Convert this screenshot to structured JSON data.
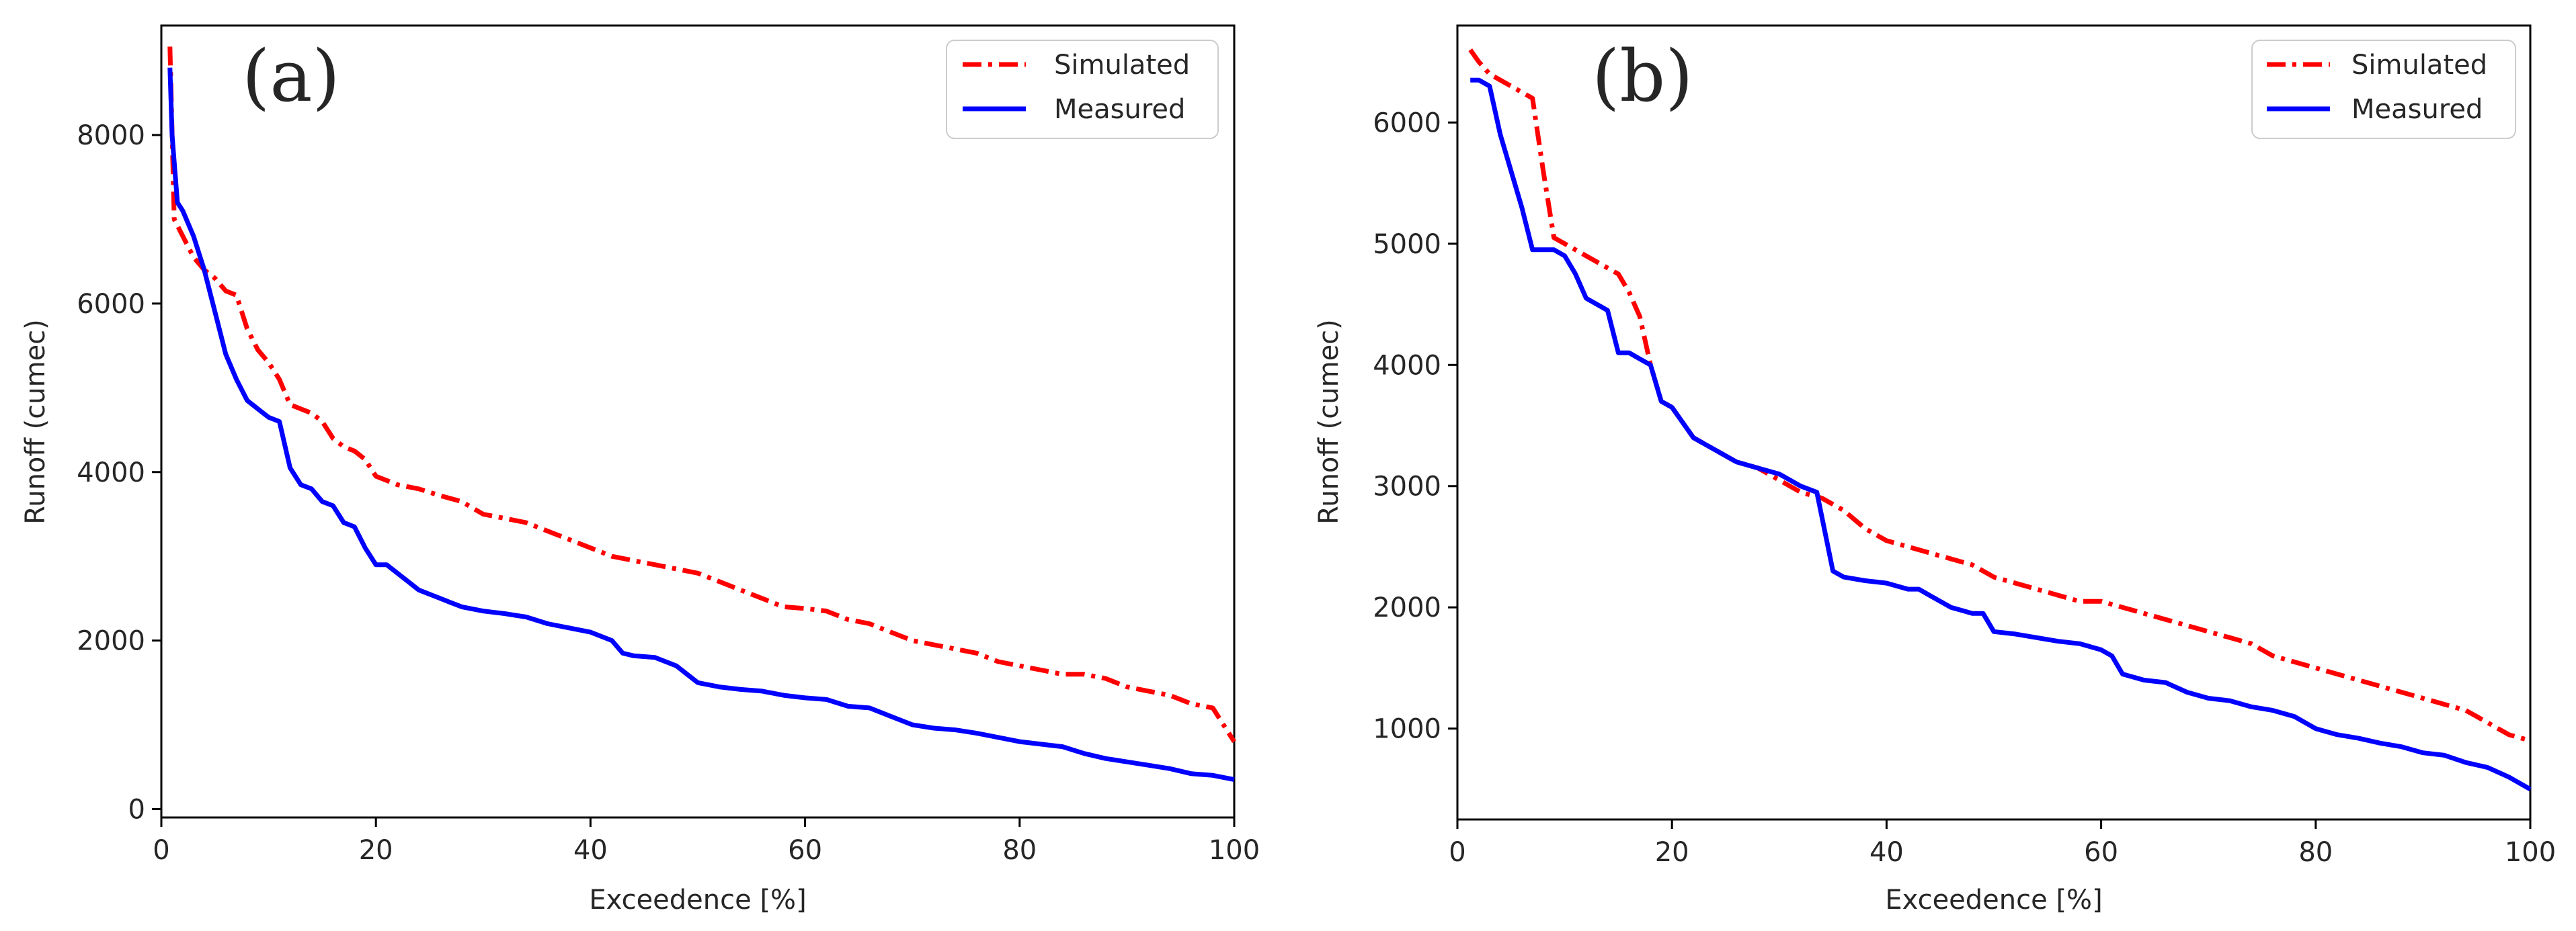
{
  "chart_data": [
    {
      "type": "line",
      "panel_label": "(a)",
      "xlabel": "Exceedence [%]",
      "ylabel": "Runoff (cumec)",
      "xlim": [
        0,
        100
      ],
      "ylim": [
        -100,
        9300
      ],
      "xticks": [
        0,
        20,
        40,
        60,
        80,
        100
      ],
      "yticks": [
        0,
        2000,
        4000,
        6000,
        8000
      ],
      "xtick_labels": [
        "0",
        "20",
        "40",
        "60",
        "80",
        "100"
      ],
      "ytick_labels": [
        "0",
        "2000",
        "4000",
        "6000",
        "8000"
      ],
      "legend_position": "top-right",
      "series": [
        {
          "name": "Simulated",
          "color": "#ff0000",
          "style": "dash-dot",
          "x": [
            0.8,
            1.2,
            2,
            3,
            4,
            5,
            6,
            7,
            8,
            9,
            10,
            11,
            12,
            13,
            14,
            15,
            16,
            17,
            18,
            19,
            20,
            22,
            24,
            26,
            28,
            30,
            32,
            34,
            36,
            38,
            40,
            42,
            44,
            46,
            48,
            50,
            52,
            54,
            56,
            58,
            60,
            62,
            64,
            66,
            68,
            70,
            72,
            74,
            76,
            78,
            80,
            82,
            84,
            86,
            88,
            90,
            92,
            94,
            96,
            98,
            99,
            100
          ],
          "y": [
            9050,
            7000,
            6800,
            6550,
            6400,
            6300,
            6150,
            6100,
            5700,
            5450,
            5300,
            5100,
            4800,
            4750,
            4700,
            4600,
            4400,
            4300,
            4250,
            4150,
            3950,
            3850,
            3800,
            3720,
            3650,
            3500,
            3450,
            3400,
            3300,
            3200,
            3100,
            3000,
            2950,
            2900,
            2850,
            2800,
            2700,
            2600,
            2500,
            2400,
            2380,
            2350,
            2250,
            2200,
            2100,
            2000,
            1950,
            1900,
            1850,
            1750,
            1700,
            1650,
            1600,
            1600,
            1550,
            1450,
            1400,
            1350,
            1250,
            1200,
            1000,
            800
          ]
        },
        {
          "name": "Measured",
          "color": "#0000ff",
          "style": "solid",
          "x": [
            0.8,
            1,
            1.5,
            2,
            3,
            4,
            5,
            6,
            7,
            8,
            9,
            10,
            11,
            12,
            13,
            14,
            15,
            16,
            17,
            18,
            19,
            20,
            21,
            22,
            23,
            24,
            25,
            26,
            27,
            28,
            30,
            32,
            34,
            36,
            38,
            40,
            42,
            43,
            44,
            46,
            48,
            50,
            52,
            54,
            56,
            58,
            60,
            62,
            64,
            66,
            68,
            70,
            72,
            74,
            76,
            78,
            80,
            82,
            84,
            86,
            88,
            90,
            92,
            94,
            96,
            98,
            100
          ],
          "y": [
            8800,
            8000,
            7200,
            7100,
            6800,
            6400,
            5900,
            5400,
            5100,
            4850,
            4750,
            4650,
            4600,
            4050,
            3850,
            3800,
            3650,
            3600,
            3400,
            3350,
            3100,
            2900,
            2900,
            2800,
            2700,
            2600,
            2550,
            2500,
            2450,
            2400,
            2350,
            2320,
            2280,
            2200,
            2150,
            2100,
            2000,
            1850,
            1820,
            1800,
            1700,
            1500,
            1450,
            1420,
            1400,
            1350,
            1320,
            1300,
            1220,
            1200,
            1100,
            1000,
            960,
            940,
            900,
            850,
            800,
            770,
            740,
            660,
            600,
            560,
            520,
            480,
            420,
            400,
            350
          ]
        }
      ]
    },
    {
      "type": "line",
      "panel_label": "(b)",
      "xlabel": "Exceedence [%]",
      "ylabel": "Runoff (cumec)",
      "xlim": [
        0,
        100
      ],
      "ylim": [
        250,
        6800
      ],
      "xticks": [
        0,
        20,
        40,
        60,
        80,
        100
      ],
      "yticks": [
        1000,
        2000,
        3000,
        4000,
        5000,
        6000
      ],
      "xtick_labels": [
        "0",
        "20",
        "40",
        "60",
        "80",
        "100"
      ],
      "ytick_labels": [
        "1000",
        "2000",
        "3000",
        "4000",
        "5000",
        "6000"
      ],
      "legend_position": "top-right",
      "series": [
        {
          "name": "Simulated",
          "color": "#ff0000",
          "style": "dash-dot",
          "x": [
            1.2,
            2,
            3,
            4,
            5,
            6,
            7,
            8,
            9,
            10,
            11,
            12,
            13,
            14,
            15,
            16,
            17,
            18,
            19,
            20,
            22,
            24,
            26,
            28,
            30,
            32,
            34,
            36,
            38,
            40,
            42,
            44,
            46,
            48,
            50,
            52,
            54,
            56,
            58,
            60,
            62,
            64,
            66,
            68,
            70,
            72,
            74,
            76,
            78,
            80,
            82,
            84,
            86,
            88,
            90,
            92,
            94,
            96,
            98,
            100
          ],
          "y": [
            6600,
            6500,
            6400,
            6350,
            6300,
            6250,
            6200,
            5600,
            5050,
            5000,
            4950,
            4900,
            4850,
            4800,
            4750,
            4600,
            4400,
            4000,
            3700,
            3650,
            3400,
            3300,
            3200,
            3150,
            3050,
            2950,
            2900,
            2800,
            2650,
            2550,
            2500,
            2450,
            2400,
            2350,
            2250,
            2200,
            2150,
            2100,
            2050,
            2050,
            2000,
            1950,
            1900,
            1850,
            1800,
            1750,
            1700,
            1600,
            1550,
            1500,
            1450,
            1400,
            1350,
            1300,
            1250,
            1200,
            1150,
            1050,
            950,
            900
          ]
        },
        {
          "name": "Measured",
          "color": "#0000ff",
          "style": "solid",
          "x": [
            1.2,
            2,
            3,
            4,
            5,
            6,
            7,
            8,
            9,
            10,
            11,
            12,
            13,
            14,
            15,
            16,
            17,
            18,
            19,
            20,
            22,
            24,
            26,
            28,
            30,
            32,
            33.5,
            35,
            36,
            38,
            40,
            42,
            43,
            44,
            46,
            48,
            49,
            50,
            52,
            54,
            56,
            58,
            60,
            61,
            62,
            64,
            66,
            68,
            70,
            72,
            74,
            76,
            78,
            80,
            82,
            84,
            86,
            88,
            90,
            92,
            94,
            96,
            98,
            100
          ],
          "y": [
            6350,
            6350,
            6300,
            5900,
            5600,
            5300,
            4950,
            4950,
            4950,
            4900,
            4750,
            4550,
            4500,
            4450,
            4100,
            4100,
            4050,
            4000,
            3700,
            3650,
            3400,
            3300,
            3200,
            3150,
            3100,
            3000,
            2950,
            2300,
            2250,
            2220,
            2200,
            2150,
            2150,
            2100,
            2000,
            1950,
            1950,
            1800,
            1780,
            1750,
            1720,
            1700,
            1650,
            1600,
            1450,
            1400,
            1380,
            1300,
            1250,
            1230,
            1180,
            1150,
            1100,
            1000,
            950,
            920,
            880,
            850,
            800,
            780,
            720,
            680,
            600,
            500
          ]
        }
      ]
    }
  ]
}
